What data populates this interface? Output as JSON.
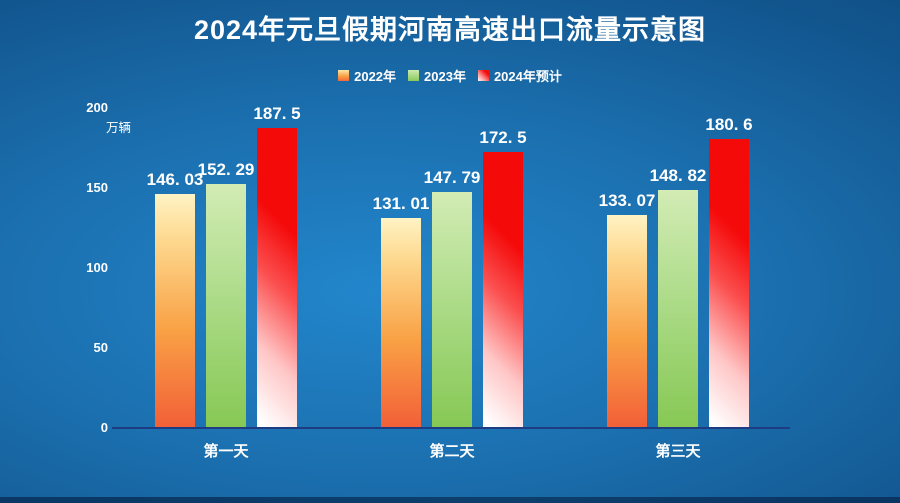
{
  "title": "2024年元旦假期河南高速出口流量示意图",
  "colors": {
    "background_center": "#2286cc",
    "background_edge": "#0d4476",
    "bottom_strip": "#0a3764",
    "axis_line": "#1e3c82",
    "text": "#ffffff",
    "series_2022": "#f89b40",
    "series_2023": "#95cf66",
    "series_2024": "#f20d0d"
  },
  "chart_data": {
    "type": "bar",
    "title": "2024年元旦假期河南高速出口流量示意图",
    "unit_label": "万辆",
    "categories": [
      "第一天",
      "第二天",
      "第三天"
    ],
    "series": [
      {
        "name": "2022年",
        "values": [
          146.03,
          131.01,
          133.07
        ],
        "labels": [
          "146. 03",
          "131. 01",
          "133. 07"
        ]
      },
      {
        "name": "2023年",
        "values": [
          152.29,
          147.79,
          148.82
        ],
        "labels": [
          "152. 29",
          "147. 79",
          "148. 82"
        ]
      },
      {
        "name": "2024年预计",
        "values": [
          187.5,
          172.5,
          180.6
        ],
        "labels": [
          "187. 5",
          "172. 5",
          "180. 6"
        ]
      }
    ],
    "yticks": [
      0,
      50,
      100,
      150,
      200
    ],
    "ylim": [
      0,
      200
    ],
    "grid": false,
    "legend_position": "top"
  }
}
